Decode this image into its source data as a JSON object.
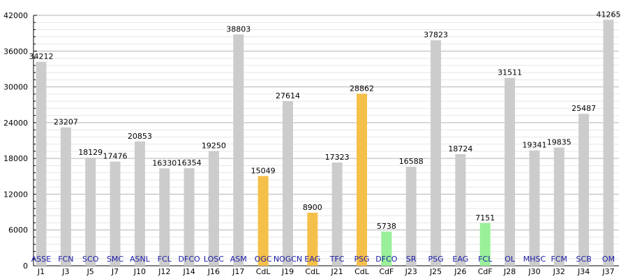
{
  "chart_data": {
    "type": "bar",
    "title": "",
    "xlabel": "",
    "ylabel": "",
    "ylim": [
      0,
      42000
    ],
    "y_ticks": [
      0,
      6000,
      12000,
      18000,
      24000,
      30000,
      36000,
      42000
    ],
    "grid": true,
    "categories": [
      "J1",
      "J3",
      "J5",
      "J7",
      "J10",
      "J12",
      "J14",
      "J16",
      "J17",
      "CdL",
      "J19",
      "CdL",
      "J21",
      "CdL",
      "CdF",
      "J23",
      "J25",
      "J26",
      "CdF",
      "J28",
      "J30",
      "J32",
      "J34",
      "J37"
    ],
    "teams": [
      "ASSE",
      "FCN",
      "SCO",
      "SMC",
      "ASNL",
      "FCL",
      "DFCO",
      "LOSC",
      "ASM",
      "OGC",
      "NOGCN",
      "EAG",
      "TFC",
      "PSG",
      "DFCO",
      "SR",
      "PSG",
      "EAG",
      "FCL",
      "OL",
      "MHSC",
      "FCM",
      "SCB",
      "OM"
    ],
    "values": [
      34212,
      23207,
      18129,
      17476,
      20853,
      16330,
      16354,
      19250,
      38803,
      15049,
      27614,
      8900,
      17323,
      28862,
      5738,
      16588,
      37823,
      18724,
      7151,
      31511,
      19341,
      19835,
      25487,
      41265
    ],
    "bar_colors": [
      "#cccccc",
      "#cccccc",
      "#cccccc",
      "#cccccc",
      "#cccccc",
      "#cccccc",
      "#cccccc",
      "#cccccc",
      "#cccccc",
      "#f5c04a",
      "#cccccc",
      "#f5c04a",
      "#cccccc",
      "#f5c04a",
      "#99f099",
      "#cccccc",
      "#cccccc",
      "#cccccc",
      "#99f099",
      "#cccccc",
      "#cccccc",
      "#cccccc",
      "#cccccc",
      "#cccccc"
    ]
  }
}
